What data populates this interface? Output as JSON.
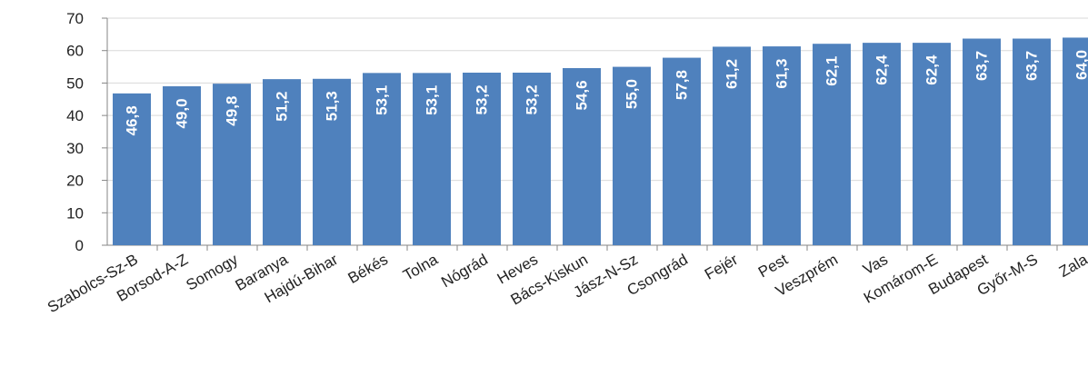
{
  "chart_data": {
    "type": "bar",
    "title": "",
    "xlabel": "",
    "ylabel": "",
    "ylim": [
      0,
      70
    ],
    "yticks": [
      0,
      10,
      20,
      30,
      40,
      50,
      60,
      70
    ],
    "grid": true,
    "legend": "none",
    "bar_color": "#4F81BD",
    "categories": [
      "Szabolcs-Sz-B",
      "Borsod-A-Z",
      "Somogy",
      "Baranya",
      "Hajdú-Bihar",
      "Békés",
      "Tolna",
      "Nógrád",
      "Heves",
      "Bács-Kiskun",
      "Jász-N-Sz",
      "Csongrád",
      "Fejér",
      "Pest",
      "Veszprém",
      "Vas",
      "Komárom-E",
      "Budapest",
      "Győr-M-S",
      "Zala"
    ],
    "values": [
      46.8,
      49.0,
      49.8,
      51.2,
      51.3,
      53.1,
      53.1,
      53.2,
      53.2,
      54.6,
      55.0,
      57.8,
      61.2,
      61.3,
      62.1,
      62.4,
      62.4,
      63.7,
      63.7,
      64.0
    ],
    "value_labels": [
      "46,8",
      "49,0",
      "49,8",
      "51,2",
      "51,3",
      "53,1",
      "53,1",
      "53,2",
      "53,2",
      "54,6",
      "55,0",
      "57,8",
      "61,2",
      "61,3",
      "62,1",
      "62,4",
      "62,4",
      "63,7",
      "63,7",
      "64,0"
    ]
  }
}
